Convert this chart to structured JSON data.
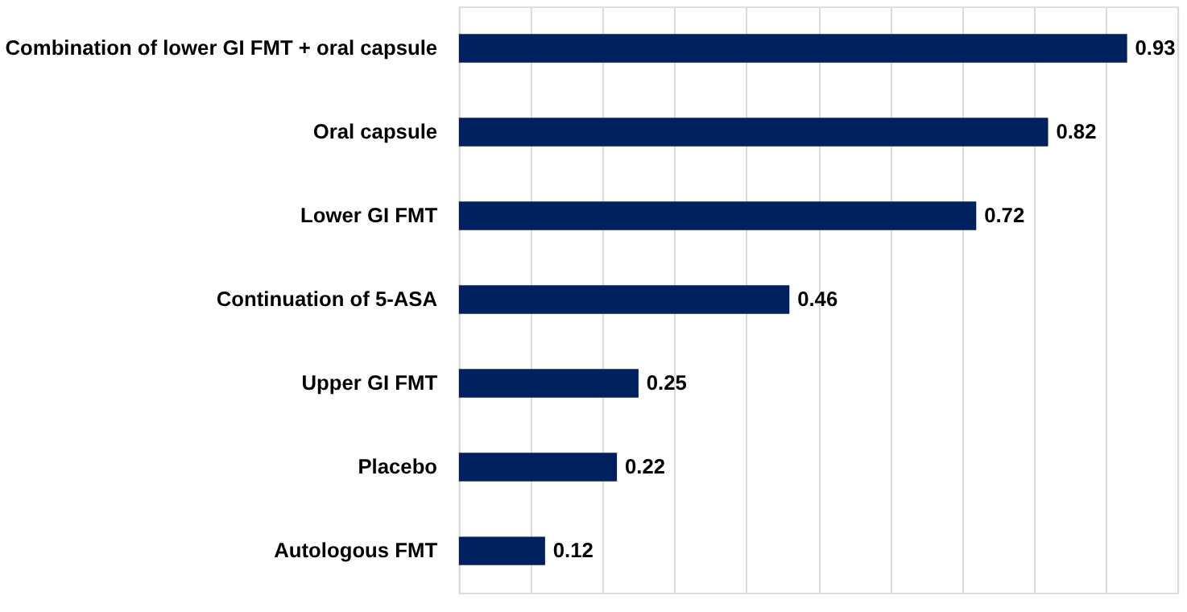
{
  "chart_data": {
    "type": "bar",
    "orientation": "horizontal",
    "categories": [
      "Combination of lower GI FMT + oral capsule",
      "Oral capsule",
      "Lower GI FMT",
      "Continuation of 5-ASA",
      "Upper GI FMT",
      "Placebo",
      "Autologous FMT"
    ],
    "values": [
      0.93,
      0.82,
      0.72,
      0.46,
      0.25,
      0.22,
      0.12
    ],
    "color": "#002060",
    "xlim": [
      0,
      1
    ],
    "xticks": [
      {
        "value": 0,
        "label": null
      },
      {
        "value": 0.1,
        "label": null
      },
      {
        "value": 0.2,
        "label": null
      },
      {
        "value": 0.3,
        "label": null
      },
      {
        "value": 0.4,
        "label": null
      },
      {
        "value": 0.5,
        "label": null
      },
      {
        "value": 0.6,
        "label": null
      },
      {
        "value": 0.7,
        "label": null
      },
      {
        "value": 0.8,
        "label": null
      },
      {
        "value": 0.9,
        "label": null
      },
      {
        "value": 1.0,
        "label": null
      }
    ],
    "grid": "x",
    "tick_labels": "y",
    "data_labels": true
  }
}
